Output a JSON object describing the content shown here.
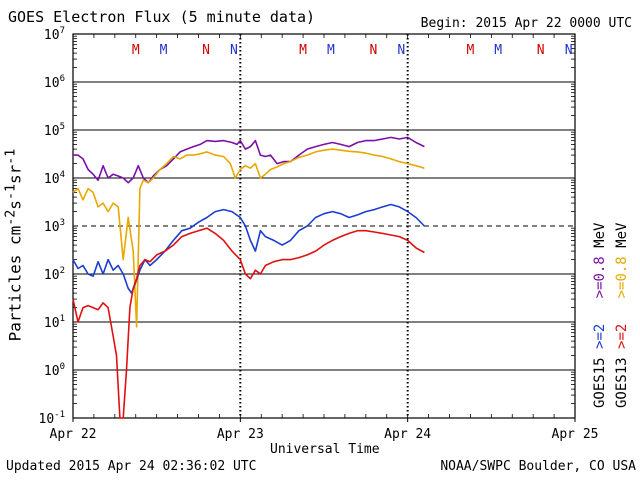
{
  "header": {
    "title": "GOES Electron Flux (5 minute data)",
    "begin": "Begin: 2015 Apr 22 0000 UTC"
  },
  "footer": {
    "updated": "Updated 2015 Apr 24 02:36:02 UTC",
    "credit": "NOAA/SWPC Boulder, CO USA"
  },
  "chart_data": {
    "type": "line",
    "title": "GOES Electron Flux (5 minute data)",
    "xlabel": "Universal Time",
    "ylabel": "Particles cm-2 s-1 sr-1",
    "y_scale": "log",
    "ylim_exp": [
      -1,
      7
    ],
    "y_tick_exponents": [
      -1,
      0,
      1,
      2,
      3,
      4,
      5,
      6,
      7
    ],
    "threshold_exp": 3,
    "x_unit": "days since 2015 Apr 22 0000 UTC",
    "xlim": [
      0,
      3
    ],
    "x_ticks": [
      {
        "x": 0,
        "label": "Apr 22"
      },
      {
        "x": 1,
        "label": "Apr 23"
      },
      {
        "x": 2,
        "label": "Apr 24"
      },
      {
        "x": 3,
        "label": "Apr 25"
      }
    ],
    "day_markers": [
      {
        "x": 0.375,
        "label": "M",
        "color": "#d40000"
      },
      {
        "x": 0.541,
        "label": "M",
        "color": "#2233cc"
      },
      {
        "x": 0.795,
        "label": "N",
        "color": "#d40000"
      },
      {
        "x": 0.962,
        "label": "N",
        "color": "#2233cc"
      },
      {
        "x": 1.375,
        "label": "M",
        "color": "#d40000"
      },
      {
        "x": 1.541,
        "label": "M",
        "color": "#2233cc"
      },
      {
        "x": 1.795,
        "label": "N",
        "color": "#d40000"
      },
      {
        "x": 1.962,
        "label": "N",
        "color": "#2233cc"
      },
      {
        "x": 2.375,
        "label": "M",
        "color": "#d40000"
      },
      {
        "x": 2.541,
        "label": "M",
        "color": "#2233cc"
      },
      {
        "x": 2.795,
        "label": "N",
        "color": "#d40000"
      },
      {
        "x": 2.962,
        "label": "N",
        "color": "#2233cc"
      }
    ],
    "legend": {
      "labels": [
        {
          "text": "GOES15 >=2 MeV",
          "satellite": "GOES15",
          "energy": ">=2",
          "unit": "",
          "color": "#1a3fd0"
        },
        {
          "text": ">=0.8 MeV",
          "satellite": "",
          "energy": ">=0.8",
          "unit": "MeV",
          "color": "#7a10a8"
        },
        {
          "text": "GOES13 >=2 MeV",
          "satellite": "GOES13",
          "energy": ">=2",
          "unit": "",
          "color": "#e01010"
        },
        {
          "text": ">=0.8 MeV",
          "satellite": "",
          "energy": ">=0.8",
          "unit": "MeV",
          "color": "#e8a800"
        }
      ]
    },
    "series": [
      {
        "name": "GOES15 >=0.8 MeV",
        "color": "#7a10a8",
        "x": [
          0.0,
          0.03,
          0.06,
          0.09,
          0.12,
          0.15,
          0.18,
          0.21,
          0.24,
          0.27,
          0.3,
          0.33,
          0.36,
          0.39,
          0.42,
          0.45,
          0.48,
          0.52,
          0.56,
          0.6,
          0.64,
          0.68,
          0.72,
          0.76,
          0.8,
          0.85,
          0.9,
          0.95,
          0.98,
          1.0,
          1.03,
          1.06,
          1.09,
          1.12,
          1.15,
          1.18,
          1.22,
          1.26,
          1.3,
          1.35,
          1.4,
          1.45,
          1.5,
          1.55,
          1.6,
          1.65,
          1.7,
          1.75,
          1.8,
          1.85,
          1.9,
          1.95,
          2.0,
          2.05,
          2.1
        ],
        "y": [
          30000,
          30000,
          25000,
          15000,
          12000,
          9000,
          18000,
          10000,
          12000,
          11000,
          10000,
          8000,
          10000,
          18000,
          10000,
          8000,
          11000,
          15000,
          18000,
          25000,
          35000,
          40000,
          45000,
          50000,
          60000,
          58000,
          60000,
          55000,
          50000,
          60000,
          40000,
          45000,
          60000,
          30000,
          28000,
          30000,
          20000,
          22000,
          22000,
          30000,
          40000,
          45000,
          50000,
          55000,
          50000,
          45000,
          55000,
          60000,
          60000,
          65000,
          70000,
          65000,
          70000,
          55000,
          45000
        ]
      },
      {
        "name": "GOES13 >=0.8 MeV",
        "color": "#e8a800",
        "x": [
          0.0,
          0.03,
          0.06,
          0.09,
          0.12,
          0.15,
          0.18,
          0.21,
          0.24,
          0.27,
          0.3,
          0.33,
          0.36,
          0.38,
          0.4,
          0.42,
          0.45,
          0.48,
          0.52,
          0.56,
          0.6,
          0.64,
          0.68,
          0.72,
          0.76,
          0.8,
          0.85,
          0.9,
          0.94,
          0.97,
          1.0,
          1.03,
          1.06,
          1.09,
          1.12,
          1.15,
          1.18,
          1.22,
          1.26,
          1.3,
          1.35,
          1.4,
          1.45,
          1.5,
          1.55,
          1.6,
          1.65,
          1.7,
          1.75,
          1.8,
          1.85,
          1.9,
          1.95,
          2.0,
          2.05,
          2.1
        ],
        "y": [
          5000,
          6000,
          3500,
          6000,
          5000,
          2500,
          3000,
          2000,
          3000,
          2500,
          200,
          1500,
          300,
          8,
          6000,
          9000,
          8000,
          10000,
          15000,
          20000,
          28000,
          25000,
          30000,
          30000,
          32000,
          35000,
          30000,
          28000,
          20000,
          10000,
          15000,
          18000,
          16000,
          20000,
          10000,
          12000,
          15000,
          17000,
          20000,
          22000,
          27000,
          30000,
          35000,
          38000,
          40000,
          38000,
          36000,
          35000,
          33000,
          30000,
          28000,
          25000,
          22000,
          20000,
          18000,
          16000
        ]
      },
      {
        "name": "GOES15 >=2 MeV",
        "color": "#1a3fd0",
        "x": [
          0.0,
          0.03,
          0.06,
          0.09,
          0.12,
          0.15,
          0.18,
          0.21,
          0.24,
          0.27,
          0.3,
          0.33,
          0.35,
          0.37,
          0.4,
          0.43,
          0.46,
          0.5,
          0.55,
          0.6,
          0.65,
          0.7,
          0.75,
          0.8,
          0.85,
          0.9,
          0.95,
          1.0,
          1.03,
          1.06,
          1.09,
          1.12,
          1.15,
          1.2,
          1.25,
          1.3,
          1.35,
          1.4,
          1.45,
          1.5,
          1.55,
          1.6,
          1.65,
          1.7,
          1.75,
          1.8,
          1.85,
          1.9,
          1.95,
          2.0,
          2.05,
          2.1
        ],
        "y": [
          200,
          130,
          150,
          100,
          90,
          180,
          100,
          200,
          120,
          150,
          100,
          50,
          40,
          60,
          120,
          200,
          150,
          200,
          300,
          500,
          800,
          900,
          1200,
          1500,
          2000,
          2200,
          2000,
          1500,
          1000,
          500,
          300,
          800,
          600,
          500,
          400,
          500,
          800,
          1000,
          1500,
          1800,
          2000,
          1800,
          1500,
          1700,
          2000,
          2200,
          2500,
          2800,
          2500,
          2000,
          1500,
          1000
        ]
      },
      {
        "name": "GOES13 >=2 MeV",
        "color": "#e01010",
        "x": [
          0.0,
          0.03,
          0.06,
          0.09,
          0.12,
          0.15,
          0.18,
          0.21,
          0.24,
          0.26,
          0.28,
          0.3,
          0.32,
          0.34,
          0.36,
          0.38,
          0.4,
          0.43,
          0.46,
          0.5,
          0.55,
          0.6,
          0.65,
          0.7,
          0.75,
          0.8,
          0.85,
          0.9,
          0.95,
          1.0,
          1.03,
          1.06,
          1.09,
          1.12,
          1.15,
          1.2,
          1.25,
          1.3,
          1.35,
          1.4,
          1.45,
          1.5,
          1.55,
          1.6,
          1.65,
          1.7,
          1.75,
          1.8,
          1.85,
          1.9,
          1.95,
          2.0,
          2.05,
          2.1
        ],
        "y": [
          30,
          10,
          20,
          22,
          20,
          18,
          25,
          20,
          5,
          2,
          0.1,
          0.1,
          1,
          20,
          50,
          80,
          150,
          200,
          180,
          250,
          300,
          400,
          600,
          700,
          800,
          900,
          700,
          500,
          300,
          200,
          100,
          80,
          120,
          100,
          150,
          180,
          200,
          200,
          220,
          250,
          300,
          400,
          500,
          600,
          700,
          800,
          800,
          750,
          700,
          650,
          600,
          500,
          350,
          280
        ]
      }
    ]
  }
}
